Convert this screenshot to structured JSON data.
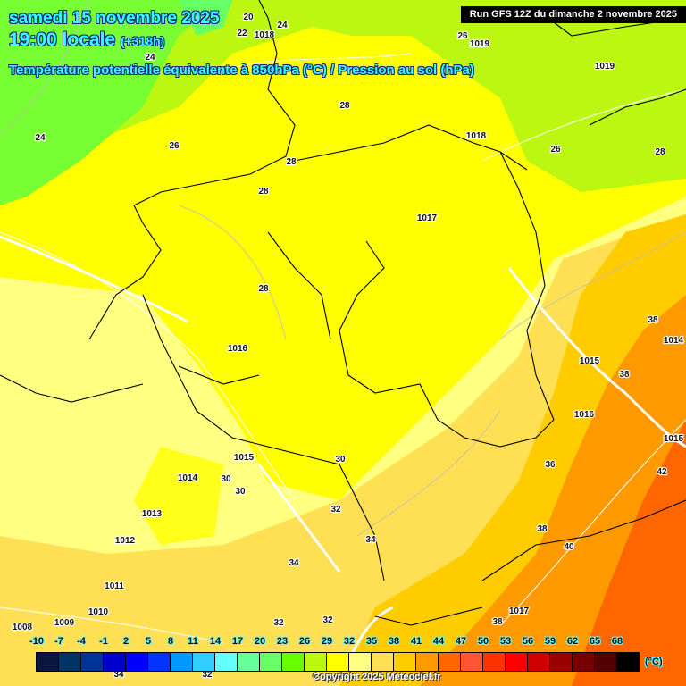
{
  "header": {
    "date": "samedi 15 novembre 2025",
    "time": "19:00 locale",
    "lead": "(+318h)",
    "parameter": "Température potentielle équivalente à 850hPa (°C) / Pression au sol (hPa)",
    "run": "Run GFS 12Z du dimanche 2 novembre 2025"
  },
  "legend": {
    "unit": "(°C)",
    "ticks": [
      "-10",
      "-7",
      "-4",
      "-1",
      "2",
      "5",
      "8",
      "11",
      "14",
      "17",
      "20",
      "23",
      "26",
      "29",
      "32",
      "35",
      "38",
      "41",
      "44",
      "47",
      "50",
      "53",
      "56",
      "59",
      "62",
      "65",
      "68"
    ],
    "colors": [
      "#0a1540",
      "#003366",
      "#003399",
      "#0000cc",
      "#0000ff",
      "#0033ff",
      "#0099ff",
      "#33ccff",
      "#66ffff",
      "#66ff99",
      "#66ff66",
      "#66ff00",
      "#bbf711",
      "#ffff00",
      "#ffff80",
      "#ffe055",
      "#ffcc00",
      "#ff9900",
      "#ff6600",
      "#ff5533",
      "#ff3300",
      "#ff0000",
      "#cc0000",
      "#990000",
      "#770000",
      "#550000",
      "#000000"
    ]
  },
  "temperature_labels": [
    "20",
    "24",
    "22",
    "24",
    "26",
    "24",
    "26",
    "28",
    "28",
    "28",
    "26",
    "28",
    "28",
    "38",
    "38",
    "36",
    "42",
    "38",
    "40",
    "30",
    "30",
    "30",
    "32",
    "34",
    "34",
    "32",
    "32",
    "38",
    "34",
    "32"
  ],
  "pressure_labels": [
    "1018",
    "1019",
    "1019",
    "1018",
    "1017",
    "1016",
    "1015",
    "1014",
    "1016",
    "1015",
    "1015",
    "1014",
    "1013",
    "1012",
    "1011",
    "1010",
    "1017",
    "1008",
    "1009"
  ],
  "copyright": "Copyright 2025 Meteociel.fr"
}
